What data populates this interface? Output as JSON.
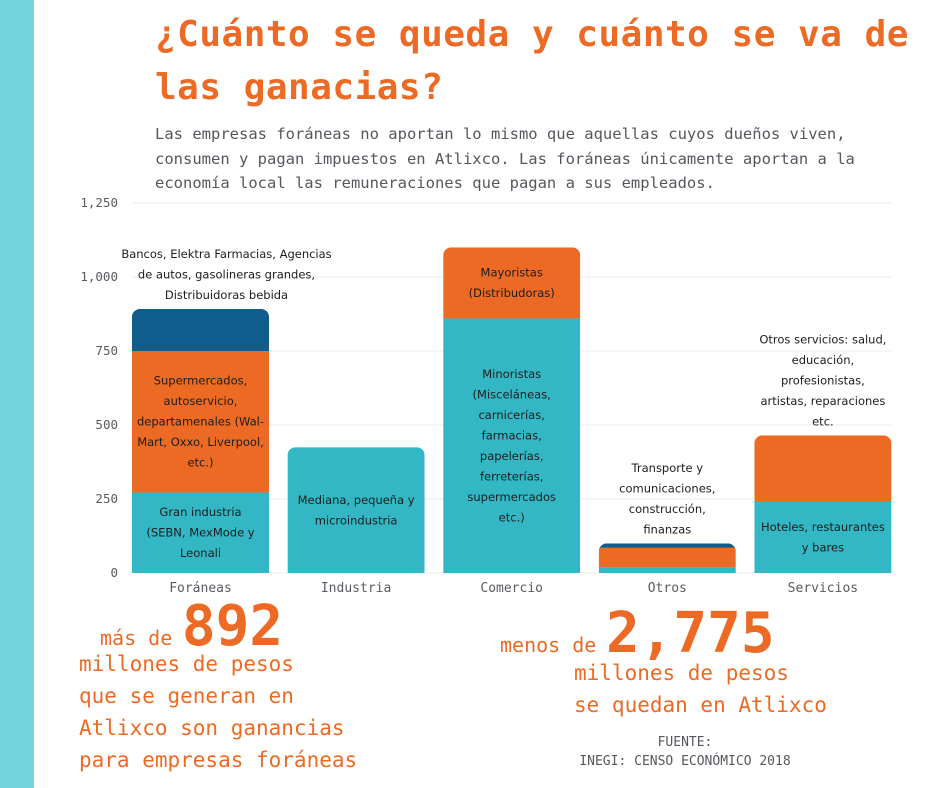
{
  "title": "¿Cuánto se queda y cuánto se va de las ganacias?",
  "subtitle": "Las empresas foráneas no aportan lo mismo que aquellas cuyos dueños viven, consumen y pagan impuestos en Atlixco. Las foráneas únicamente aportan a la economía local las remuneraciones que pagan a sus empleados.",
  "colors": {
    "teal": "#34b7c5",
    "orange": "#ec6a24",
    "navy": "#0f5d8c",
    "sidebar": "#74d3dc",
    "text_orange": "#ec6a24"
  },
  "chart_data": {
    "type": "bar",
    "stacked": true,
    "categories": [
      "Foráneas",
      "Industria",
      "Comercio",
      "Otros",
      "Servicios"
    ],
    "ylim": [
      0,
      1250
    ],
    "yticks": [
      0,
      250,
      500,
      750,
      1000,
      1250
    ],
    "ytick_labels": [
      "0",
      "250",
      "500",
      "750",
      "1,000",
      "1,250"
    ],
    "grid": true,
    "segments": [
      [
        {
          "value": 272,
          "color": "teal",
          "lines": [
            "Gran industria",
            "(SEBN, MexMode y",
            "Leonali"
          ]
        },
        {
          "value": 478,
          "color": "orange",
          "lines": [
            "Supermercados,",
            "autoservicio,",
            "departamenales (Wal-",
            "Mart, Oxxo, Liverpool,",
            "etc.)"
          ]
        },
        {
          "value": 142,
          "color": "navy",
          "lines": []
        }
      ],
      [
        {
          "value": 425,
          "color": "teal",
          "lines": [
            "Mediana, pequeña y",
            "microindustria"
          ]
        }
      ],
      [
        {
          "value": 860,
          "color": "teal",
          "lines": [
            "Minoristas",
            "(Misceláneas,",
            "carnicerías,",
            "farmacias,",
            "papelerías,",
            "ferreterías,",
            "supermercados",
            "etc.)"
          ]
        },
        {
          "value": 240,
          "color": "orange",
          "lines": [
            "Mayoristas",
            "(Distribudoras)"
          ]
        }
      ],
      [
        {
          "value": 20,
          "color": "teal",
          "lines": []
        },
        {
          "value": 65,
          "color": "orange",
          "lines": []
        },
        {
          "value": 15,
          "color": "navy",
          "lines": []
        }
      ],
      [
        {
          "value": 240,
          "color": "teal",
          "lines": [
            "Hoteles, restaurantes",
            "y bares"
          ]
        },
        {
          "value": 225,
          "color": "orange",
          "lines": []
        }
      ]
    ],
    "annotations_above": [
      {
        "category": "Foráneas",
        "lines": [
          "Bancos, Elektra Farmacias, Agencias",
          "de autos, gasolineras grandes,",
          "Distribuidoras bebida"
        ]
      },
      {
        "category": "Otros",
        "lines": [
          "Transporte y",
          "comunicaciones,",
          "construcción,",
          "finanzas"
        ]
      },
      {
        "category": "Servicios",
        "lines": [
          "Otros servicios: salud,",
          "educación,",
          "profesionistas,",
          "artistas, reparaciones",
          "etc."
        ]
      }
    ]
  },
  "stat_left": {
    "prefix": "más de",
    "number": "892",
    "lines": [
      "millones de pesos",
      "que se generan en",
      "Atlixco son ganancias",
      "para empresas foráneas"
    ]
  },
  "stat_right": {
    "prefix": "menos de",
    "number": "2,775",
    "lines": [
      "millones de pesos",
      "se quedan en Atlixco"
    ]
  },
  "source": {
    "label": "FUENTE:",
    "text": "INEGI: CENSO ECONÓMICO 2018"
  }
}
